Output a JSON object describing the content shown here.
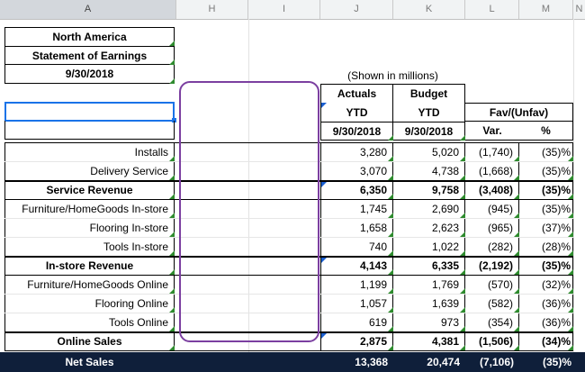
{
  "columns": [
    "A",
    "H",
    "I",
    "J",
    "K",
    "L",
    "M",
    "N"
  ],
  "header_block": {
    "region": "North America",
    "statement": "Statement of Earnings",
    "date": "9/30/2018",
    "shown_in": "(Shown in millions)"
  },
  "col_headers": {
    "actuals": "Actuals",
    "budget": "Budget",
    "ytd": "YTD",
    "fav": "Fav/(Unfav)",
    "date_j": "9/30/2018",
    "date_k": "9/30/2018",
    "var": "Var.",
    "pct": "%"
  },
  "rows": [
    {
      "label": "Installs",
      "actual": "3,280",
      "budget": "5,020",
      "var": "(1,740)",
      "pct": "(35)%",
      "bold": false
    },
    {
      "label": "Delivery Service",
      "actual": "3,070",
      "budget": "4,738",
      "var": "(1,668)",
      "pct": "(35)%",
      "bold": false
    },
    {
      "label": "Service Revenue",
      "actual": "6,350",
      "budget": "9,758",
      "var": "(3,408)",
      "pct": "(35)%",
      "bold": true
    },
    {
      "label": "Furniture/HomeGoods In-store",
      "actual": "1,745",
      "budget": "2,690",
      "var": "(945)",
      "pct": "(35)%",
      "bold": false
    },
    {
      "label": "Flooring In-store",
      "actual": "1,658",
      "budget": "2,623",
      "var": "(965)",
      "pct": "(37)%",
      "bold": false
    },
    {
      "label": "Tools In-store",
      "actual": "740",
      "budget": "1,022",
      "var": "(282)",
      "pct": "(28)%",
      "bold": false
    },
    {
      "label": "In-store Revenue",
      "actual": "4,143",
      "budget": "6,335",
      "var": "(2,192)",
      "pct": "(35)%",
      "bold": true
    },
    {
      "label": "Furniture/HomeGoods Online",
      "actual": "1,199",
      "budget": "1,769",
      "var": "(570)",
      "pct": "(32)%",
      "bold": false
    },
    {
      "label": "Flooring Online",
      "actual": "1,057",
      "budget": "1,639",
      "var": "(582)",
      "pct": "(36)%",
      "bold": false
    },
    {
      "label": "Tools Online",
      "actual": "619",
      "budget": "973",
      "var": "(354)",
      "pct": "(36)%",
      "bold": false
    },
    {
      "label": "Online Sales",
      "actual": "2,875",
      "budget": "4,381",
      "var": "(1,506)",
      "pct": "(34)%",
      "bold": true
    }
  ],
  "net_sales": {
    "label": "Net Sales",
    "actual": "13,368",
    "budget": "20,474",
    "var": "(7,106)",
    "pct": "(35)%"
  },
  "colors": {
    "highlight": "#7b3fa0",
    "selection": "#1a73e8",
    "net_bg": "#0f1f3a"
  }
}
